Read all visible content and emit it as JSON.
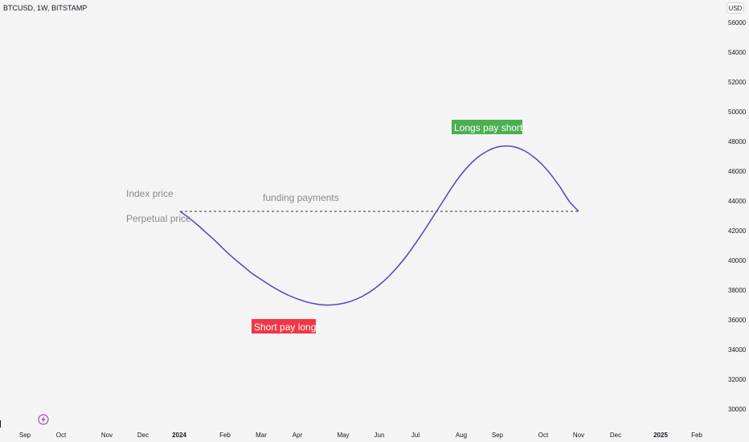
{
  "header": {
    "symbol_line": "BTCUSD, 1W, BITSTAMP",
    "currency": "USD"
  },
  "chart_data": {
    "type": "line",
    "title": "",
    "xlabel": "",
    "ylabel": "",
    "ylim": [
      29200,
      56800
    ],
    "y_ticks": [
      30000,
      32000,
      34000,
      36000,
      38000,
      40000,
      42000,
      44000,
      46000,
      48000,
      50000,
      52000,
      54000,
      56000
    ],
    "x_ticks": [
      "Sep",
      "Oct",
      "Nov",
      "Dec",
      "2024",
      "Feb",
      "Mar",
      "Apr",
      "May",
      "Jun",
      "Jul",
      "Aug",
      "Sep",
      "Oct",
      "Nov",
      "Dec",
      "2025",
      "Feb"
    ],
    "x_ticks_bold": [
      "2024",
      "2025"
    ],
    "grid": false,
    "series": [
      {
        "values": [
          43300,
          42850,
          42350,
          41800,
          41250,
          40650,
          40100,
          39600,
          39100,
          38700,
          38300,
          37950,
          37650,
          37400,
          37200,
          37070,
          37000,
          37020,
          37110,
          37280,
          37540,
          37900,
          38350,
          38900,
          39550,
          40300,
          41150,
          42050,
          43000,
          43950,
          44900,
          45750,
          46450,
          47000,
          47380,
          47620,
          47700,
          47620,
          47380,
          46980,
          46430,
          45720,
          44880,
          43950,
          43300
        ],
        "color": "#5b3fbf"
      },
      {
        "values": [
          43300,
          43300
        ],
        "color": "#333333",
        "style": "dashed"
      }
    ],
    "annotations": {
      "index_price": "Index price",
      "perpetual_price": "Perpetual price",
      "funding_payments": "funding payments",
      "longs_pay_shorts": "Longs pay shorts",
      "short_pay_longs": "Short pay longs"
    },
    "colors": {
      "longs_box": "#4caf50",
      "shorts_box": "#f23645",
      "curve": "#5b3fbf"
    }
  },
  "icons": {
    "bottom_left": "flash-icon"
  }
}
